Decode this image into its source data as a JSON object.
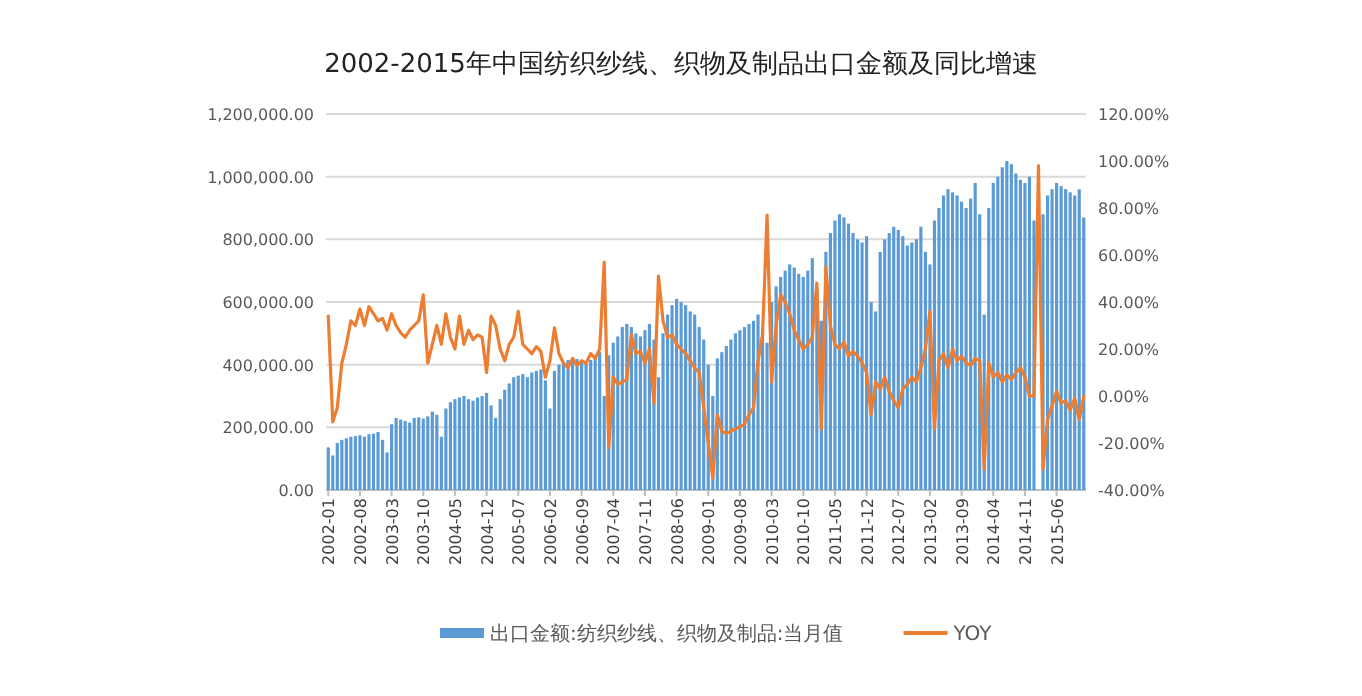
{
  "chart_data": {
    "type": "bar",
    "title": "2002-2015年中国纺织纱线、织物及制品出口金额及同比增速",
    "categories": [
      "2002-01",
      null,
      null,
      null,
      null,
      null,
      null,
      "2002-08",
      null,
      null,
      null,
      null,
      null,
      null,
      "2003-03",
      null,
      null,
      null,
      null,
      null,
      null,
      "2003-10",
      null,
      null,
      null,
      null,
      null,
      null,
      "2004-05",
      null,
      null,
      null,
      null,
      null,
      null,
      "2004-12",
      null,
      null,
      null,
      null,
      null,
      null,
      "2005-07",
      null,
      null,
      null,
      null,
      null,
      null,
      "2006-02",
      null,
      null,
      null,
      null,
      null,
      null,
      "2006-09",
      null,
      null,
      null,
      null,
      null,
      null,
      "2007-04",
      null,
      null,
      null,
      null,
      null,
      null,
      "2007-11",
      null,
      null,
      null,
      null,
      null,
      null,
      "2008-06",
      null,
      null,
      null,
      null,
      null,
      null,
      "2009-01",
      null,
      null,
      null,
      null,
      null,
      null,
      "2009-08",
      null,
      null,
      null,
      null,
      null,
      null,
      "2010-03",
      null,
      null,
      null,
      null,
      null,
      null,
      "2010-10",
      null,
      null,
      null,
      null,
      null,
      null,
      "2011-05",
      null,
      null,
      null,
      null,
      null,
      null,
      "2011-12",
      null,
      null,
      null,
      null,
      null,
      null,
      "2012-07",
      null,
      null,
      null,
      null,
      null,
      null,
      "2013-02",
      null,
      null,
      null,
      null,
      null,
      null,
      "2013-09",
      null,
      null,
      null,
      null,
      null,
      null,
      "2014-04",
      null,
      null,
      null,
      null,
      null,
      null,
      "2014-11",
      null,
      null,
      null,
      null,
      null,
      null,
      "2015-06",
      null,
      null,
      null,
      null,
      null,
      null
    ],
    "series": [
      {
        "name": "出口金额:纺织纱线、织物及制品:当月值",
        "color": "#5b9bd5",
        "values": [
          136000,
          110000,
          150000,
          160000,
          165000,
          170000,
          172000,
          175000,
          170000,
          178000,
          180000,
          185000,
          160000,
          120000,
          210000,
          230000,
          225000,
          220000,
          215000,
          230000,
          232000,
          228000,
          235000,
          250000,
          240000,
          170000,
          260000,
          280000,
          290000,
          295000,
          300000,
          290000,
          285000,
          295000,
          300000,
          310000,
          270000,
          230000,
          290000,
          320000,
          340000,
          360000,
          365000,
          370000,
          360000,
          375000,
          380000,
          385000,
          350000,
          260000,
          380000,
          400000,
          410000,
          415000,
          420000,
          418000,
          410000,
          405000,
          415000,
          420000,
          440000,
          300000,
          430000,
          470000,
          490000,
          520000,
          530000,
          520000,
          500000,
          490000,
          510000,
          530000,
          480000,
          360000,
          500000,
          560000,
          590000,
          610000,
          600000,
          590000,
          570000,
          560000,
          520000,
          480000,
          400000,
          300000,
          420000,
          440000,
          460000,
          480000,
          500000,
          510000,
          520000,
          530000,
          540000,
          560000,
          520000,
          470000,
          600000,
          650000,
          680000,
          700000,
          720000,
          710000,
          690000,
          680000,
          700000,
          740000,
          640000,
          540000,
          760000,
          820000,
          860000,
          880000,
          870000,
          850000,
          820000,
          800000,
          790000,
          810000,
          600000,
          570000,
          760000,
          800000,
          820000,
          840000,
          830000,
          810000,
          780000,
          790000,
          800000,
          840000,
          760000,
          720000,
          860000,
          900000,
          940000,
          960000,
          950000,
          940000,
          920000,
          900000,
          930000,
          980000,
          880000,
          560000,
          900000,
          980000,
          1000000,
          1030000,
          1050000,
          1040000,
          1010000,
          990000,
          980000,
          1000000,
          860000,
          null,
          880000,
          940000,
          960000,
          980000,
          970000,
          960000,
          950000,
          940000,
          960000,
          870000
        ]
      },
      {
        "name": "YOY",
        "type": "line",
        "axis": "y2",
        "color": "#ed7d31",
        "values": [
          34,
          -11,
          -5,
          14,
          22,
          32,
          30,
          37,
          30,
          38,
          35,
          32,
          33,
          28,
          35,
          30,
          27,
          25,
          28,
          30,
          32,
          43,
          14,
          22,
          30,
          22,
          35,
          25,
          20,
          34,
          22,
          28,
          24,
          26,
          25,
          10,
          34,
          30,
          20,
          15,
          22,
          25,
          36,
          22,
          20,
          18,
          21,
          19,
          8,
          15,
          29,
          18,
          14,
          12,
          16,
          13,
          15,
          14,
          18,
          16,
          20,
          57,
          -22,
          8,
          5,
          6,
          7,
          26,
          18,
          19,
          14,
          20,
          -3,
          51,
          32,
          25,
          26,
          22,
          20,
          18,
          15,
          12,
          10,
          -5,
          -20,
          -35,
          -8,
          -15,
          -16,
          -15,
          -14,
          -13,
          -12,
          -8,
          -5,
          15,
          26,
          77,
          6,
          30,
          43,
          40,
          35,
          28,
          24,
          20,
          22,
          25,
          48,
          -14,
          55,
          30,
          22,
          20,
          23,
          17,
          19,
          17,
          14,
          10,
          -8,
          6,
          3,
          8,
          2,
          -2,
          -5,
          3,
          5,
          8,
          6,
          12,
          20,
          36,
          -14,
          15,
          18,
          12,
          20,
          15,
          17,
          14,
          13,
          16,
          15,
          -31,
          14,
          8,
          10,
          6,
          9,
          7,
          10,
          12,
          8,
          0,
          0,
          98,
          -31,
          -10,
          -4,
          2,
          -3,
          -2,
          -6,
          -1,
          -10,
          0
        ]
      }
    ],
    "ylim": [
      0,
      1200000
    ],
    "yticks": [
      {
        "value": 0,
        "label": "0.00"
      },
      {
        "value": 200000,
        "label": "200,000.00"
      },
      {
        "value": 400000,
        "label": "400,000.00"
      },
      {
        "value": 600000,
        "label": "600,000.00"
      },
      {
        "value": 800000,
        "label": "800,000.00"
      },
      {
        "value": 1000000,
        "label": "1,000,000.00"
      },
      {
        "value": 1200000,
        "label": "1,200,000.00"
      }
    ],
    "y2lim": [
      -40,
      120
    ],
    "y2ticks": [
      {
        "value": -40,
        "label": "-40.00%"
      },
      {
        "value": -20,
        "label": "-20.00%"
      },
      {
        "value": 0,
        "label": "0.00%"
      },
      {
        "value": 20,
        "label": "20.00%"
      },
      {
        "value": 40,
        "label": "40.00%"
      },
      {
        "value": 60,
        "label": "60.00%"
      },
      {
        "value": 80,
        "label": "80.00%"
      },
      {
        "value": 100,
        "label": "100.00%"
      },
      {
        "value": 120,
        "label": "120.00%"
      }
    ],
    "grid": "y",
    "legend": "bottom"
  }
}
